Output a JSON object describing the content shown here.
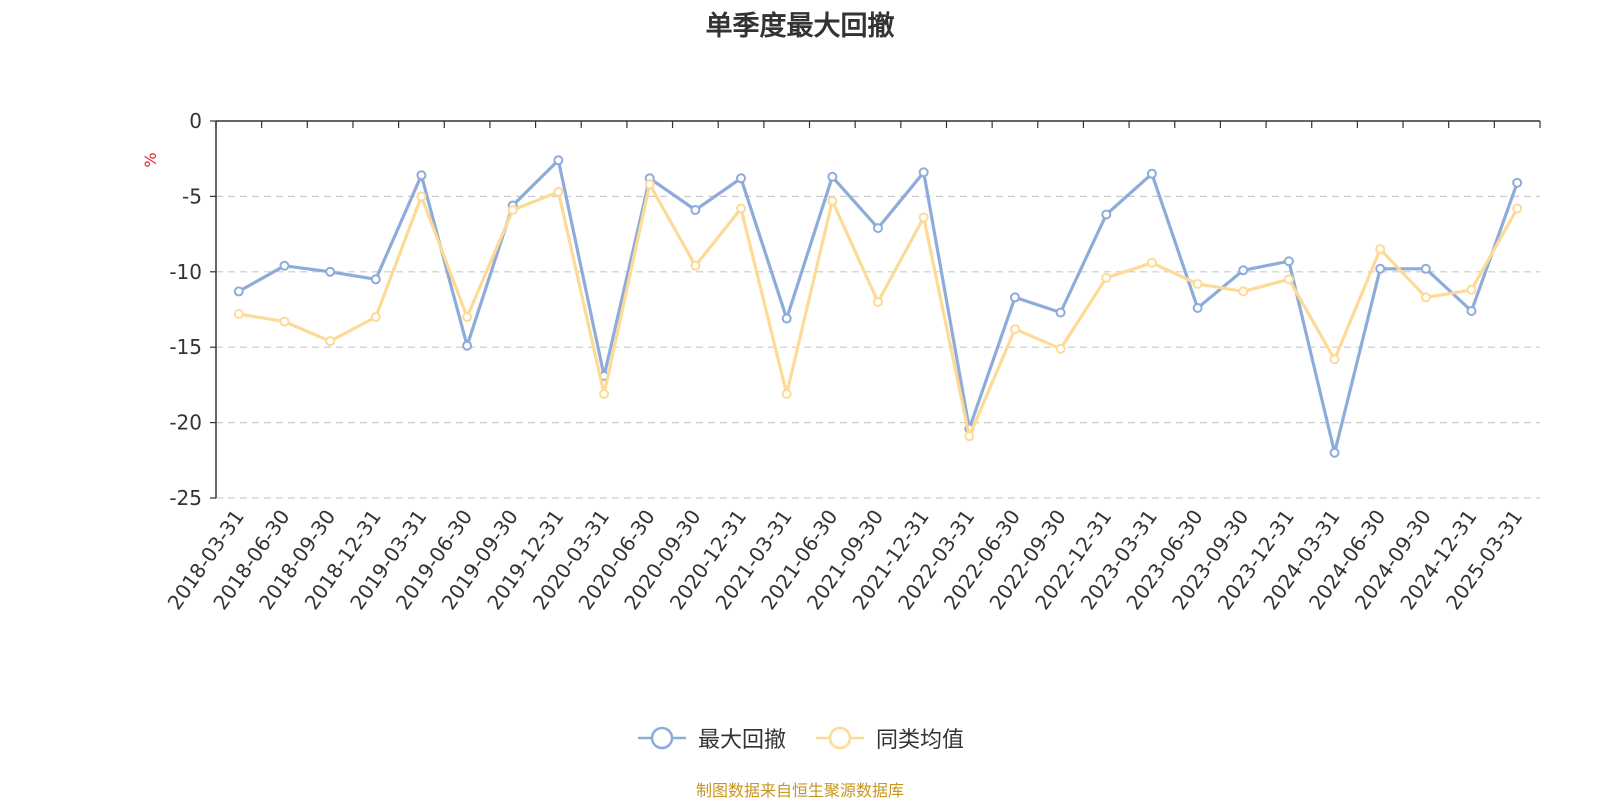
{
  "chart_data": {
    "type": "line",
    "title": "单季度最大回撤",
    "ylabel": "%",
    "ylim": [
      -25,
      0
    ],
    "yticks": [
      0,
      -5,
      -10,
      -15,
      -20,
      -25
    ],
    "grid": true,
    "legend_position": "bottom-center",
    "categories": [
      "2018-03-31",
      "2018-06-30",
      "2018-09-30",
      "2018-12-31",
      "2019-03-31",
      "2019-06-30",
      "2019-09-30",
      "2019-12-31",
      "2020-03-31",
      "2020-06-30",
      "2020-09-30",
      "2020-12-31",
      "2021-03-31",
      "2021-06-30",
      "2021-09-30",
      "2021-12-31",
      "2022-03-31",
      "2022-06-30",
      "2022-09-30",
      "2022-12-31",
      "2023-03-31",
      "2023-06-30",
      "2023-09-30",
      "2023-12-31",
      "2024-03-31",
      "2024-06-30",
      "2024-09-30",
      "2024-12-31",
      "2025-03-31"
    ],
    "series": [
      {
        "name": "最大回撤",
        "color": "#8eacd9",
        "values": [
          -11.3,
          -9.6,
          -10.0,
          -10.5,
          -3.6,
          -14.9,
          -5.6,
          -2.6,
          -16.9,
          -3.8,
          -5.9,
          -3.8,
          -13.1,
          -3.7,
          -7.1,
          -3.4,
          -20.4,
          -11.7,
          -12.7,
          -6.2,
          -3.5,
          -12.4,
          -9.9,
          -9.3,
          -22.0,
          -9.8,
          -9.8,
          -12.6,
          -4.1
        ]
      },
      {
        "name": "同类均值",
        "color": "#fddb97",
        "values": [
          -12.8,
          -13.3,
          -14.6,
          -13.0,
          -5.0,
          -13.0,
          -5.9,
          -4.7,
          -18.1,
          -4.2,
          -9.6,
          -5.8,
          -18.1,
          -5.3,
          -12.0,
          -6.4,
          -20.9,
          -13.8,
          -15.1,
          -10.4,
          -9.4,
          -10.8,
          -11.3,
          -10.5,
          -15.8,
          -8.5,
          -11.7,
          -11.2,
          -5.8
        ]
      }
    ]
  },
  "source_note": "制图数据来自恒生聚源数据库"
}
